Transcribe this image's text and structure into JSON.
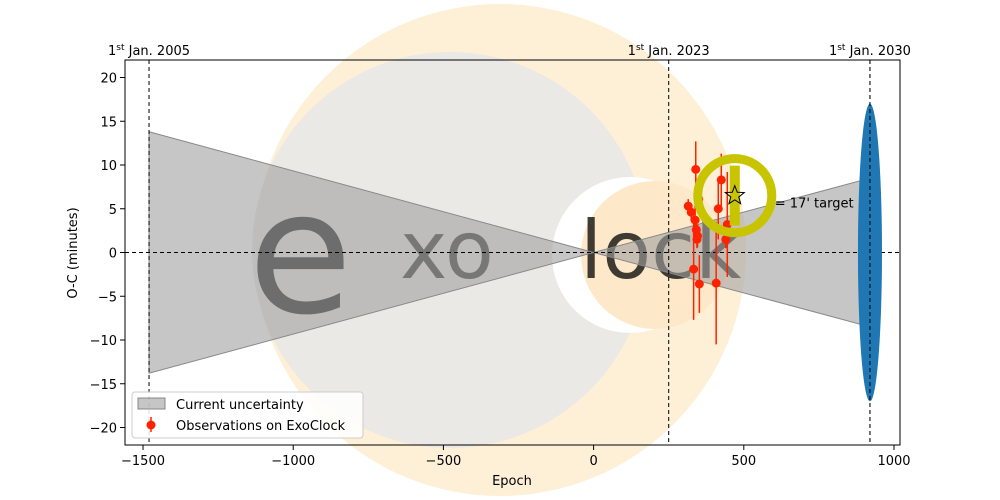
{
  "chart_data": {
    "type": "scatter",
    "xlabel": "Epoch",
    "ylabel": "O-C (minutes)",
    "xlim": [
      -1560,
      1020
    ],
    "ylim": [
      -22,
      22
    ],
    "x_ticks": [
      -1500,
      -1000,
      -500,
      0,
      500,
      1000
    ],
    "y_ticks": [
      -20,
      -15,
      -10,
      -5,
      0,
      5,
      10,
      15,
      20
    ],
    "x_tick_labels": [
      "−1500",
      "−1000",
      "−500",
      "0",
      "500",
      "1000"
    ],
    "y_tick_labels": [
      "−20",
      "−15",
      "−10",
      "−5",
      "0",
      "5",
      "10",
      "15",
      "20"
    ],
    "date_markers": [
      {
        "epoch": -1480,
        "label_pre": "1",
        "label_sup": "st",
        "label_post": " Jan. 2005"
      },
      {
        "epoch": 250,
        "label_pre": "1",
        "label_sup": "st",
        "label_post": " Jan. 2023"
      },
      {
        "epoch": 920,
        "label_pre": "1",
        "label_sup": "st",
        "label_post": " Jan. 2030"
      }
    ],
    "uncertainty_band": {
      "name": "Current uncertainty",
      "points": [
        {
          "x": -1480,
          "upper": 13.8,
          "lower": -13.8
        },
        {
          "x": 0,
          "upper": 0,
          "lower": 0
        },
        {
          "x": 920,
          "upper": 8.5,
          "lower": -8.5
        }
      ],
      "color": "#a0a0a0"
    },
    "future_ellipse": {
      "x": 920,
      "y": 0,
      "half_height": 17,
      "half_width_epochs": 40,
      "color": "#1f77b4"
    },
    "observations": {
      "name": "Observations on ExoClock",
      "color": "#ff2200",
      "points": [
        {
          "x": 315,
          "y": 5.3,
          "err": 0.8
        },
        {
          "x": 325,
          "y": 4.6,
          "err": 1.0
        },
        {
          "x": 333,
          "y": -1.9,
          "err": 5.8
        },
        {
          "x": 338,
          "y": 3.7,
          "err": 2.0
        },
        {
          "x": 340,
          "y": 9.5,
          "err": 3.2
        },
        {
          "x": 342,
          "y": 2.6,
          "err": 1.5
        },
        {
          "x": 344,
          "y": 1.5,
          "err": 1.0
        },
        {
          "x": 346,
          "y": 1.9,
          "err": 1.3
        },
        {
          "x": 350,
          "y": 6.1,
          "err": 1.2
        },
        {
          "x": 352,
          "y": -3.6,
          "err": 3.3
        },
        {
          "x": 408,
          "y": -3.5,
          "err": 7.0
        },
        {
          "x": 415,
          "y": 5.0,
          "err": 3.5
        },
        {
          "x": 425,
          "y": 8.3,
          "err": 3.0
        },
        {
          "x": 440,
          "y": 1.5,
          "err": 1.0
        },
        {
          "x": 445,
          "y": 3.2,
          "err": 6.0
        }
      ]
    },
    "target_marker": {
      "x": 470,
      "y": 6.5,
      "label": "= 17' target"
    },
    "legend": {
      "placement": "lower-left",
      "entries": [
        "Current uncertainty",
        "Observations on ExoClock"
      ]
    },
    "grid": false
  },
  "watermark": {
    "text_left": "ExO",
    "text_right": "Clock"
  }
}
